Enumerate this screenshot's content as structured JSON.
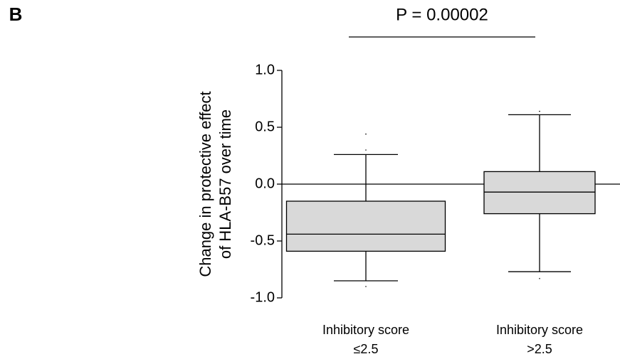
{
  "chart_data": {
    "type": "box",
    "panel_label": "B",
    "annotation": "P = 0.00002",
    "y_label": [
      "Change in protective effect",
      "of HLA-B57  over time"
    ],
    "categories": [
      [
        "Inhibitory score",
        "≤2.5"
      ],
      [
        "Inhibitory score",
        ">2.5"
      ]
    ],
    "boxes": [
      {
        "whislo": -0.85,
        "q1": -0.59,
        "med": -0.44,
        "q3": -0.15,
        "whishi": 0.26,
        "fliers": [
          0.44,
          0.3,
          -0.9
        ]
      },
      {
        "whislo": -0.77,
        "q1": -0.26,
        "med": -0.07,
        "q3": 0.11,
        "whishi": 0.61,
        "fliers": [
          0.64,
          -0.83
        ]
      }
    ],
    "color": "#d9d9d9",
    "reference_line": 0,
    "ylim": [
      -1,
      1
    ],
    "yticks": [
      {
        "value": 1,
        "label": "1.0"
      },
      0.5,
      {
        "value": 0,
        "label": "0.0"
      },
      -0.5,
      {
        "value": -1,
        "label": "-1.0"
      }
    ]
  }
}
